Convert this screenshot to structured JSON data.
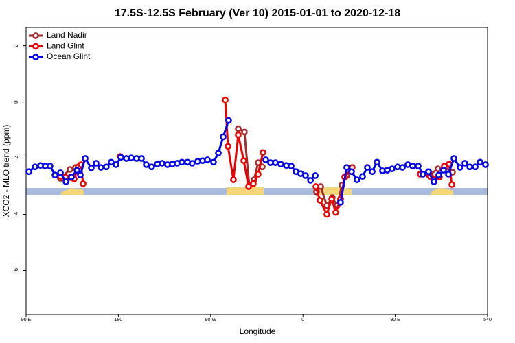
{
  "chart_data": {
    "type": "line",
    "title": "17.5S-12.5S February (Ver 10)   2015-01-01 to 2020-12-18",
    "x_label": "Longitude",
    "y_label": "XCO2 - MLO trend (ppm)",
    "xlim": [
      90,
      540
    ],
    "ylim": [
      -7.55,
      2.65
    ],
    "xticks": [
      {
        "value": 90,
        "label": "90 E"
      },
      180,
      {
        "value": 270,
        "label": "90 W"
      },
      {
        "value": 360,
        "label": "0"
      },
      {
        "value": 450,
        "label": "90 E"
      },
      540
    ],
    "yticks": [
      2,
      0,
      -2,
      -4,
      -6
    ],
    "grid": false,
    "legend": "top-left",
    "series": [
      {
        "name": "Land Nadir",
        "color": "#a52a2a",
        "x": [
          123.5,
          132.9,
          138.2,
          250,
          296.9,
          302.9,
          307.6,
          312.3,
          316.3,
          320.3,
          390,
          373.2,
          377.3,
          383.3,
          388.6,
          393.3,
          398,
          402.7,
          560,
          483,
          491.7,
          497.8,
          505.8
        ],
        "values": [
          -2.72,
          -2.4,
          -2.33,
          null,
          -0.95,
          -1.07,
          -2.96,
          -2.77,
          -2.16,
          -2.31,
          null,
          -3.2,
          -3.01,
          -3.69,
          -3.4,
          -3.69,
          -2.96,
          -2.62,
          null,
          -2.6,
          -2.38,
          -2.33,
          -2.5
        ]
      },
      {
        "name": "Land Glint",
        "color": "#ee0000",
        "x": [
          123.5,
          128.2,
          132.9,
          136.9,
          140.9,
          143.6,
          145.6,
          160,
          181.7,
          250,
          284.2,
          286.9,
          292.2,
          296.9,
          302.3,
          307,
          311.6,
          316.3,
          321,
          390,
          372.6,
          376.6,
          383.3,
          388,
          392,
          396.7,
          400.7,
          408,
          560,
          474.3,
          484.4,
          493.1,
          497.8,
          502.5,
          505.2
        ],
        "values": [
          -2.65,
          -2.67,
          -2.69,
          -2.74,
          -2.31,
          -2.23,
          -2.91,
          null,
          -1.94,
          null,
          0.07,
          -1.58,
          -2.77,
          -1.17,
          -2.09,
          -3.01,
          -2.91,
          -2.57,
          -1.8,
          null,
          -3.01,
          -3.5,
          -4.0,
          -3.45,
          -3.93,
          -3.45,
          -2.67,
          -2.33,
          null,
          -2.57,
          -2.65,
          -2.67,
          -2.28,
          -2.21,
          -2.94
        ]
      },
      {
        "name": "Ocean Glint",
        "color": "#0000ee",
        "x": [
          92.7,
          98.7,
          104.1,
          108.8,
          113.4,
          118.2,
          123.5,
          128.9,
          134.2,
          139.6,
          142.9,
          147.6,
          153.6,
          158.3,
          163,
          168.3,
          173,
          177.7,
          182.4,
          187.8,
          192.5,
          197.8,
          202.5,
          207.2,
          212.5,
          217.9,
          222.6,
          227.9,
          232.6,
          237.3,
          242,
          247.4,
          252,
          257.4,
          262.1,
          266.8,
          272.8,
          277.5,
          282.2,
          287.5,
          305,
          323.7,
          328.4,
          333.1,
          338.4,
          343.8,
          348.5,
          353.2,
          357.8,
          362.5,
          367.3,
          372,
          385,
          396.7,
          402.7,
          407.4,
          412.7,
          418.1,
          422.8,
          427.5,
          432.2,
          437.5,
          442.2,
          446.9,
          452.3,
          457,
          462.3,
          467,
          472.4,
          477,
          482.4,
          487.7,
          492.4,
          497.1,
          501.8,
          507.2,
          513.2,
          517.9,
          522.6,
          528,
          532.7,
          538
        ],
        "values": [
          -2.48,
          -2.31,
          -2.26,
          -2.28,
          -2.28,
          -2.6,
          -2.52,
          -2.84,
          -2.67,
          -2.43,
          -2.6,
          -2.01,
          -2.35,
          -2.18,
          -2.33,
          -2.31,
          -2.14,
          -2.23,
          -1.97,
          -2.01,
          -1.99,
          -2.01,
          -2.01,
          -2.23,
          -2.31,
          -2.21,
          -2.18,
          -2.23,
          -2.21,
          -2.18,
          -2.14,
          -2.14,
          -2.18,
          -2.11,
          -2.09,
          -2.06,
          -2.14,
          -1.82,
          -1.24,
          -0.66,
          null,
          -2.06,
          -2.16,
          -2.16,
          -2.21,
          -2.26,
          -2.28,
          -2.48,
          -2.55,
          -2.62,
          -2.79,
          -2.62,
          null,
          -3.57,
          -2.33,
          -2.48,
          -2.77,
          -2.65,
          -2.33,
          -2.48,
          -2.14,
          -2.45,
          -2.43,
          -2.38,
          -2.31,
          -2.33,
          -2.23,
          -2.28,
          -2.28,
          -2.57,
          -2.48,
          -2.84,
          -2.6,
          -2.43,
          -2.57,
          -2.01,
          -2.33,
          -2.18,
          -2.31,
          -2.31,
          -2.14,
          -2.23
        ]
      }
    ]
  }
}
